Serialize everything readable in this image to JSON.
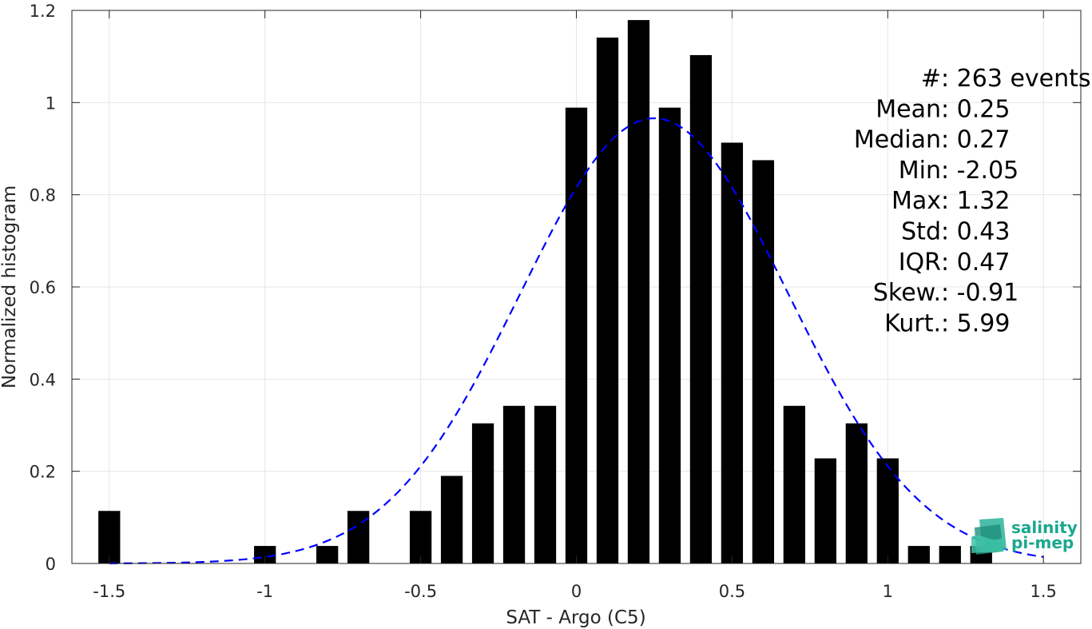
{
  "chart_data": {
    "type": "bar",
    "xlabel": "SAT - Argo (C5)",
    "ylabel": "Normalized histogram",
    "xlim": [
      -1.62,
      1.62
    ],
    "ylim": [
      0,
      1.2
    ],
    "xticks": [
      -1.5,
      -1,
      -0.5,
      0,
      0.5,
      1,
      1.5
    ],
    "xtick_labels": [
      "-1.5",
      "-1",
      "-0.5",
      "0",
      "0.5",
      "1",
      "1.5"
    ],
    "yticks": [
      0,
      0.2,
      0.4,
      0.6,
      0.8,
      1,
      1.2
    ],
    "ytick_labels": [
      "0",
      "0.2",
      "0.4",
      "0.6",
      "0.8",
      "1",
      "1.2"
    ],
    "grid": true,
    "bar_width": 0.07,
    "bins": [
      {
        "x": -1.5,
        "value": 0.114
      },
      {
        "x": -1.0,
        "value": 0.038
      },
      {
        "x": -0.8,
        "value": 0.038
      },
      {
        "x": -0.7,
        "value": 0.114
      },
      {
        "x": -0.5,
        "value": 0.114
      },
      {
        "x": -0.4,
        "value": 0.19
      },
      {
        "x": -0.3,
        "value": 0.304
      },
      {
        "x": -0.2,
        "value": 0.342
      },
      {
        "x": -0.1,
        "value": 0.342
      },
      {
        "x": 0.0,
        "value": 0.989
      },
      {
        "x": 0.1,
        "value": 1.141
      },
      {
        "x": 0.2,
        "value": 1.179
      },
      {
        "x": 0.3,
        "value": 0.989
      },
      {
        "x": 0.4,
        "value": 1.103
      },
      {
        "x": 0.5,
        "value": 0.913
      },
      {
        "x": 0.6,
        "value": 0.875
      },
      {
        "x": 0.7,
        "value": 0.342
      },
      {
        "x": 0.8,
        "value": 0.228
      },
      {
        "x": 0.9,
        "value": 0.304
      },
      {
        "x": 1.0,
        "value": 0.228
      },
      {
        "x": 1.1,
        "value": 0.038
      },
      {
        "x": 1.2,
        "value": 0.038
      },
      {
        "x": 1.3,
        "value": 0.038
      }
    ],
    "fit_curve": {
      "style": "dashed",
      "color": "#0000ff",
      "mean": 0.25,
      "std": 0.43,
      "x_range": [
        -1.5,
        1.5
      ]
    },
    "stats": [
      {
        "label": "#  ",
        "value": ": 263 events"
      },
      {
        "label": "Mean ",
        "value": ": 0.25"
      },
      {
        "label": "Median ",
        "value": ": 0.27"
      },
      {
        "label": "Min ",
        "value": ": -2.05"
      },
      {
        "label": "Max ",
        "value": ": 1.32"
      },
      {
        "label": "Std ",
        "value": ": 0.43"
      },
      {
        "label": "IQR ",
        "value": ": 0.47"
      },
      {
        "label": "Skew. ",
        "value": ": -0.91"
      },
      {
        "label": "Kurt. ",
        "value": ": 5.99"
      }
    ]
  },
  "logo": {
    "line1": "salinity",
    "line2": "pi-mep",
    "color": "#1aa88e"
  }
}
